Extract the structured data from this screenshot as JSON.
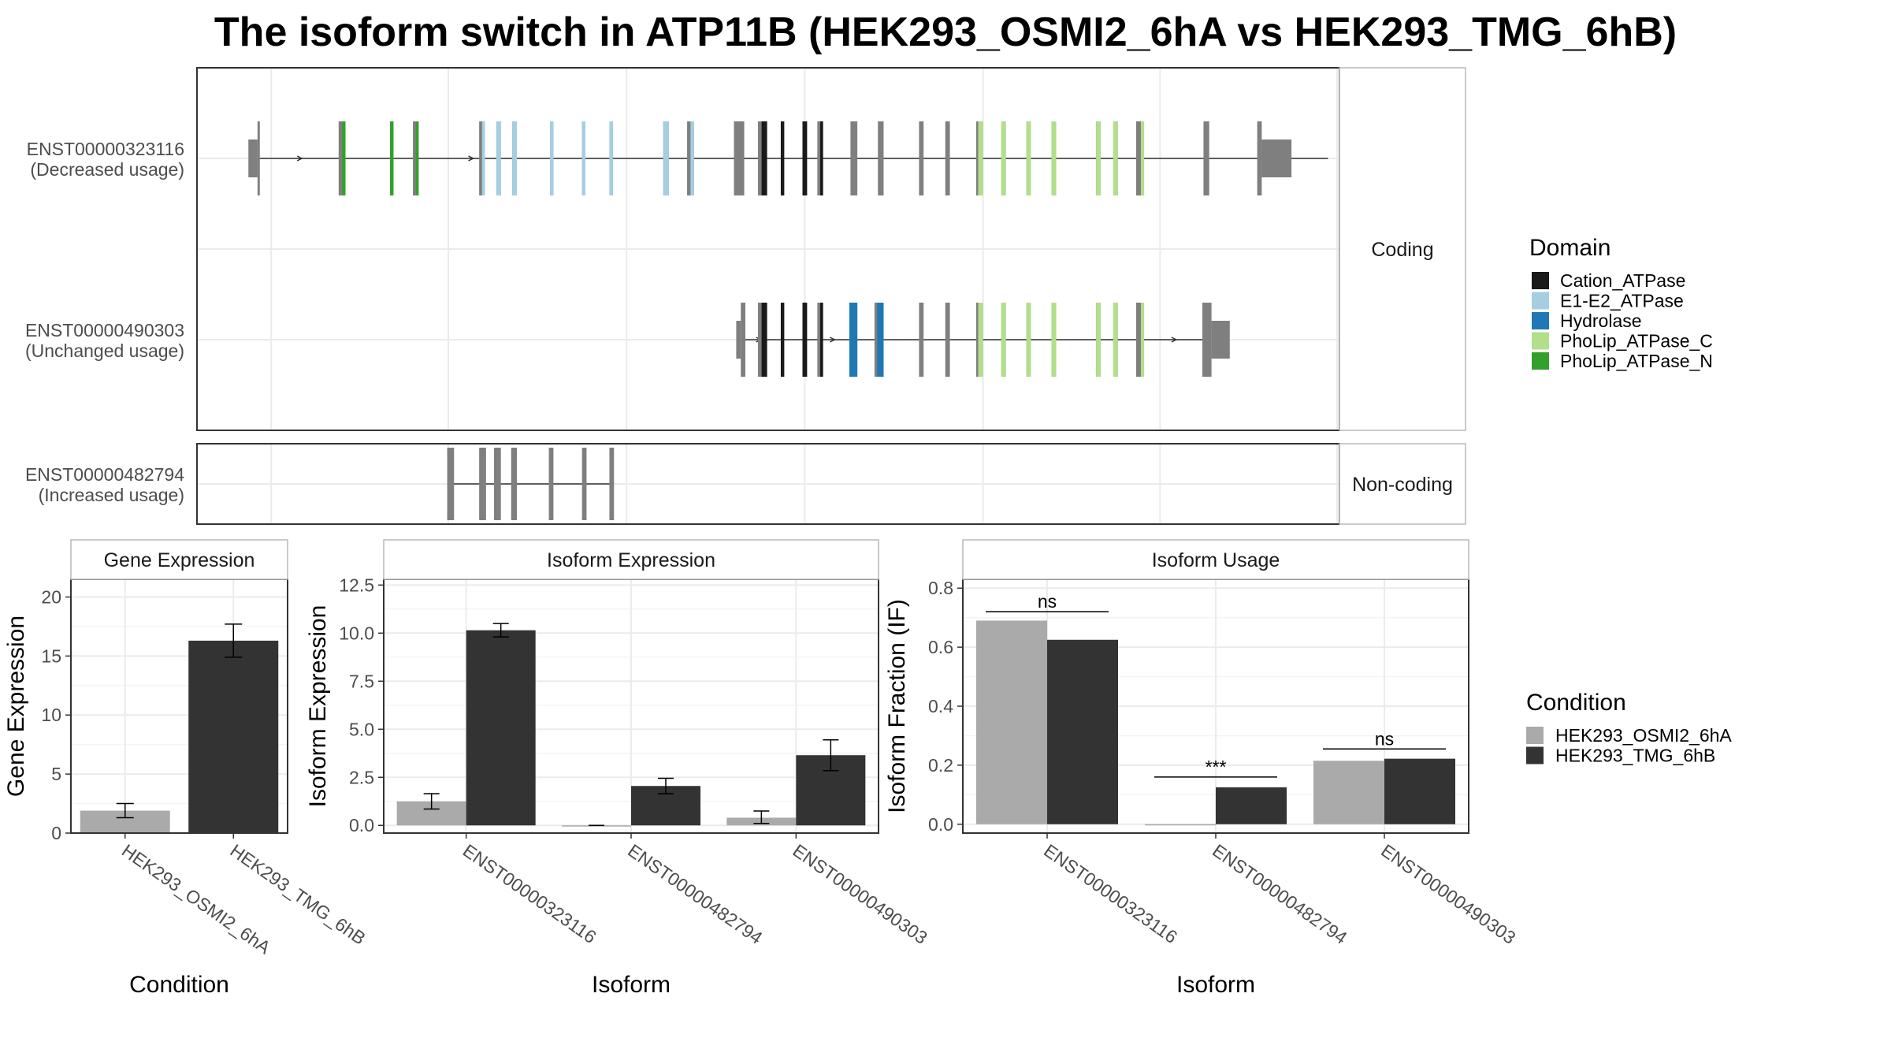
{
  "title": "The isoform switch in ATP11B (HEK293_OSMI2_6hA vs HEK293_TMG_6hB)",
  "colors": {
    "exon_default": "#7f7f7f",
    "domains": {
      "Cation_ATPase": "#1a1a1a",
      "E1-E2_ATPase": "#a6cee3",
      "Hydrolase": "#1f78b4",
      "PhoLip_ATPase_C": "#b2df8a",
      "PhoLip_ATPase_N": "#33a02c"
    },
    "conditions": {
      "HEK293_OSMI2_6hA": "#aaaaaa",
      "HEK293_TMG_6hB": "#333333"
    }
  },
  "structure": {
    "coding_label": "Coding",
    "noncoding_label": "Non-coding",
    "coding_transcripts": [
      {
        "id": "ENST00000323116",
        "usage": "(Decreased usage)",
        "intron": [
          0.053,
          0.99
        ],
        "exons": [
          {
            "s": 0.045,
            "e": 0.053,
            "h": "utr"
          },
          {
            "s": 0.053,
            "e": 0.055,
            "h": "cds"
          },
          {
            "s": 0.124,
            "e": 0.13,
            "h": "cds",
            "d": "PhoLip_ATPase_N",
            "split": 0.5
          },
          {
            "s": 0.169,
            "e": 0.172,
            "h": "cds",
            "d": "PhoLip_ATPase_N"
          },
          {
            "s": 0.189,
            "e": 0.194,
            "h": "cds",
            "d": "PhoLip_ATPase_N",
            "split": 0.5
          },
          {
            "s": 0.247,
            "e": 0.252,
            "h": "cds",
            "d": "E1-E2_ATPase",
            "split": 0.5
          },
          {
            "s": 0.262,
            "e": 0.266,
            "h": "cds",
            "d": "E1-E2_ATPase"
          },
          {
            "s": 0.276,
            "e": 0.28,
            "h": "cds",
            "d": "E1-E2_ATPase"
          },
          {
            "s": 0.309,
            "e": 0.312,
            "h": "cds",
            "d": "E1-E2_ATPase"
          },
          {
            "s": 0.337,
            "e": 0.34,
            "h": "cds",
            "d": "E1-E2_ATPase"
          },
          {
            "s": 0.361,
            "e": 0.364,
            "h": "cds",
            "d": "E1-E2_ATPase"
          },
          {
            "s": 0.408,
            "e": 0.413,
            "h": "cds",
            "d": "E1-E2_ATPase"
          },
          {
            "s": 0.429,
            "e": 0.435,
            "h": "cds",
            "d": "E1-E2_ATPase",
            "split": 0.5
          },
          {
            "s": 0.47,
            "e": 0.479,
            "h": "cds"
          },
          {
            "s": 0.491,
            "e": 0.499,
            "h": "cds",
            "d": "Cation_ATPase",
            "split": 0.4
          },
          {
            "s": 0.511,
            "e": 0.514,
            "h": "cds",
            "d": "Cation_ATPase"
          },
          {
            "s": 0.53,
            "e": 0.534,
            "h": "cds",
            "d": "Cation_ATPase"
          },
          {
            "s": 0.543,
            "e": 0.548,
            "h": "cds",
            "d": "Cation_ATPase",
            "split": 0.5
          },
          {
            "s": 0.572,
            "e": 0.578,
            "h": "cds"
          },
          {
            "s": 0.596,
            "e": 0.601,
            "h": "cds"
          },
          {
            "s": 0.632,
            "e": 0.636,
            "h": "cds"
          },
          {
            "s": 0.655,
            "e": 0.659,
            "h": "cds"
          },
          {
            "s": 0.682,
            "e": 0.688,
            "h": "cds",
            "d": "PhoLip_ATPase_C",
            "split": 0.3
          },
          {
            "s": 0.704,
            "e": 0.708,
            "h": "cds",
            "d": "PhoLip_ATPase_C"
          },
          {
            "s": 0.726,
            "e": 0.73,
            "h": "cds",
            "d": "PhoLip_ATPase_C"
          },
          {
            "s": 0.748,
            "e": 0.752,
            "h": "cds",
            "d": "PhoLip_ATPase_C"
          },
          {
            "s": 0.787,
            "e": 0.791,
            "h": "cds",
            "d": "PhoLip_ATPase_C"
          },
          {
            "s": 0.802,
            "e": 0.806,
            "h": "cds",
            "d": "PhoLip_ATPase_C"
          },
          {
            "s": 0.822,
            "e": 0.829,
            "h": "cds",
            "d": "PhoLip_ATPase_C",
            "split": 0.6
          },
          {
            "s": 0.881,
            "e": 0.886,
            "h": "cds"
          },
          {
            "s": 0.928,
            "e": 0.932,
            "h": "cds"
          },
          {
            "s": 0.932,
            "e": 0.958,
            "h": "utr"
          }
        ]
      },
      {
        "id": "ENST00000490303",
        "usage": "(Unchanged usage)",
        "intron": [
          0.476,
          0.88
        ],
        "exons": [
          {
            "s": 0.472,
            "e": 0.476,
            "h": "utr"
          },
          {
            "s": 0.476,
            "e": 0.48,
            "h": "cds"
          },
          {
            "s": 0.491,
            "e": 0.499,
            "h": "cds",
            "d": "Cation_ATPase",
            "split": 0.4
          },
          {
            "s": 0.511,
            "e": 0.514,
            "h": "cds",
            "d": "Cation_ATPase"
          },
          {
            "s": 0.53,
            "e": 0.534,
            "h": "cds",
            "d": "Cation_ATPase"
          },
          {
            "s": 0.543,
            "e": 0.548,
            "h": "cds",
            "d": "Cation_ATPase",
            "split": 0.5
          },
          {
            "s": 0.571,
            "e": 0.578,
            "h": "cds",
            "d": "Hydrolase"
          },
          {
            "s": 0.593,
            "e": 0.601,
            "h": "cds",
            "d": "Hydrolase",
            "split": 0.3
          },
          {
            "s": 0.632,
            "e": 0.636,
            "h": "cds"
          },
          {
            "s": 0.655,
            "e": 0.659,
            "h": "cds"
          },
          {
            "s": 0.682,
            "e": 0.688,
            "h": "cds",
            "d": "PhoLip_ATPase_C",
            "split": 0.3
          },
          {
            "s": 0.704,
            "e": 0.708,
            "h": "cds",
            "d": "PhoLip_ATPase_C"
          },
          {
            "s": 0.726,
            "e": 0.73,
            "h": "cds",
            "d": "PhoLip_ATPase_C"
          },
          {
            "s": 0.748,
            "e": 0.752,
            "h": "cds",
            "d": "PhoLip_ATPase_C"
          },
          {
            "s": 0.787,
            "e": 0.791,
            "h": "cds",
            "d": "PhoLip_ATPase_C"
          },
          {
            "s": 0.802,
            "e": 0.806,
            "h": "cds",
            "d": "PhoLip_ATPase_C"
          },
          {
            "s": 0.822,
            "e": 0.829,
            "h": "cds",
            "d": "PhoLip_ATPase_C",
            "split": 0.6
          },
          {
            "s": 0.88,
            "e": 0.888,
            "h": "cds"
          },
          {
            "s": 0.888,
            "e": 0.904,
            "h": "utr"
          }
        ]
      }
    ],
    "noncoding_transcripts": [
      {
        "id": "ENST00000482794",
        "usage": "(Increased usage)",
        "intron": [
          0.222,
          0.364
        ],
        "exons": [
          {
            "s": 0.219,
            "e": 0.225
          },
          {
            "s": 0.247,
            "e": 0.253
          },
          {
            "s": 0.26,
            "e": 0.266
          },
          {
            "s": 0.275,
            "e": 0.28
          },
          {
            "s": 0.308,
            "e": 0.312
          },
          {
            "s": 0.337,
            "e": 0.341
          },
          {
            "s": 0.361,
            "e": 0.365
          }
        ]
      }
    ]
  },
  "chart_data": [
    {
      "type": "bar",
      "title": "Gene Expression",
      "xlabel": "Condition",
      "ylabel": "Gene Expression",
      "ylim": [
        0,
        21.5
      ],
      "yticks": [
        "0",
        "5",
        "10",
        "15",
        "20"
      ],
      "yticks_values": [
        0,
        5,
        10,
        15,
        20
      ],
      "categories": [
        "HEK293_OSMI2_6hA",
        "HEK293_TMG_6hB"
      ],
      "values": [
        1.9,
        16.3
      ],
      "errors": [
        [
          1.3,
          2.5
        ],
        [
          14.9,
          17.7
        ]
      ]
    },
    {
      "type": "bar",
      "title": "Isoform Expression",
      "xlabel": "Isoform",
      "ylabel": "Isoform Expression",
      "ylim": [
        -0.4,
        12.8
      ],
      "yticks": [
        "0.0",
        "2.5",
        "5.0",
        "7.5",
        "10.0",
        "12.5"
      ],
      "yticks_values": [
        0,
        2.5,
        5,
        7.5,
        10,
        12.5
      ],
      "categories": [
        "ENST00000323116",
        "ENST00000482794",
        "ENST00000490303"
      ],
      "series": [
        {
          "name": "HEK293_OSMI2_6hA",
          "values": [
            1.25,
            0.0,
            0.4
          ],
          "errors": [
            [
              0.85,
              1.65
            ],
            [
              0.0,
              0.0
            ],
            [
              0.1,
              0.75
            ]
          ]
        },
        {
          "name": "HEK293_TMG_6hB",
          "values": [
            10.15,
            2.05,
            3.65
          ],
          "errors": [
            [
              9.8,
              10.5
            ],
            [
              1.65,
              2.45
            ],
            [
              2.85,
              4.45
            ]
          ]
        }
      ]
    },
    {
      "type": "bar",
      "title": "Isoform Usage",
      "xlabel": "Isoform",
      "ylabel": "Isoform Fraction (IF)",
      "ylim": [
        -0.03,
        0.83
      ],
      "yticks": [
        "0.0",
        "0.2",
        "0.4",
        "0.6",
        "0.8"
      ],
      "yticks_values": [
        0,
        0.2,
        0.4,
        0.6,
        0.8
      ],
      "categories": [
        "ENST00000323116",
        "ENST00000482794",
        "ENST00000490303"
      ],
      "series": [
        {
          "name": "HEK293_OSMI2_6hA",
          "values": [
            0.69,
            0.0,
            0.215
          ]
        },
        {
          "name": "HEK293_TMG_6hB",
          "values": [
            0.625,
            0.125,
            0.222
          ]
        }
      ],
      "significance": [
        {
          "label": "ns",
          "y": 0.72
        },
        {
          "label": "***",
          "y": 0.16
        },
        {
          "label": "ns",
          "y": 0.255
        }
      ]
    }
  ],
  "legends": {
    "domain": {
      "title": "Domain",
      "items": [
        "Cation_ATPase",
        "E1-E2_ATPase",
        "Hydrolase",
        "PhoLip_ATPase_C",
        "PhoLip_ATPase_N"
      ]
    },
    "condition": {
      "title": "Condition",
      "items": [
        "HEK293_OSMI2_6hA",
        "HEK293_TMG_6hB"
      ]
    }
  }
}
